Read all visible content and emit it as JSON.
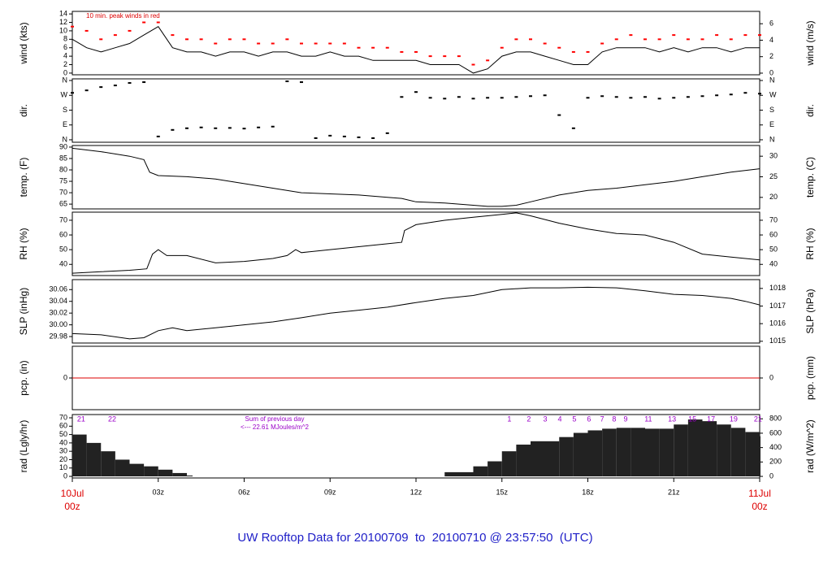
{
  "title": "UW Rooftop Data for 20100709  to  20100710 @ 23:57:50  (UTC)",
  "chart_data": [
    {
      "type": "line",
      "y_label": "wind (kts)",
      "y2_label": "wind (m/s)",
      "note": "10 min. peak winds in red",
      "xlim": [
        0,
        24
      ],
      "ylim": [
        -0.4,
        14.6
      ],
      "yticks": [
        0,
        2,
        4,
        6,
        8,
        10,
        12,
        14
      ],
      "y2lim": [
        -0.2,
        7.5
      ],
      "y2ticks": [
        0,
        2,
        4,
        6
      ],
      "x": [
        0,
        0.5,
        1,
        1.5,
        2,
        2.5,
        3,
        3.5,
        4,
        4.5,
        5,
        5.5,
        6,
        6.5,
        7,
        7.5,
        8,
        8.5,
        9,
        9.5,
        10,
        10.5,
        11,
        11.5,
        12,
        12.5,
        13,
        13.5,
        14,
        14.5,
        15,
        15.5,
        16,
        16.5,
        17,
        17.5,
        18,
        18.5,
        19,
        19.5,
        20,
        20.5,
        21,
        21.5,
        22,
        22.5,
        23,
        23.5,
        24
      ],
      "series": [
        {
          "color": "#000000",
          "style": "line",
          "values": [
            8,
            6,
            5,
            6,
            7,
            9,
            11,
            6,
            5,
            5,
            4,
            5,
            5,
            4,
            5,
            5,
            4,
            4,
            5,
            4,
            4,
            3,
            3,
            3,
            3,
            2,
            2,
            2,
            0,
            1,
            4,
            5,
            5,
            4,
            3,
            2,
            2,
            5,
            6,
            6,
            6,
            5,
            6,
            5,
            6,
            6,
            5,
            6,
            6
          ]
        },
        {
          "color": "#ff0000",
          "style": "points",
          "values": [
            11,
            10,
            8,
            9,
            10,
            12,
            12,
            9,
            8,
            8,
            7,
            8,
            8,
            7,
            7,
            8,
            7,
            7,
            7,
            7,
            6,
            6,
            6,
            5,
            5,
            4,
            4,
            4,
            2,
            3,
            6,
            8,
            8,
            7,
            6,
            5,
            5,
            7,
            8,
            9,
            8,
            8,
            9,
            8,
            8,
            9,
            8,
            9,
            9
          ]
        }
      ]
    },
    {
      "type": "scatter",
      "y_label": "dir.",
      "y2_label": "dir.",
      "xlim": [
        0,
        24
      ],
      "ylim": [
        -15,
        370
      ],
      "yticks": [
        {
          "value": 0,
          "label": "N"
        },
        {
          "value": 90,
          "label": "E"
        },
        {
          "value": 180,
          "label": "S"
        },
        {
          "value": 270,
          "label": "W"
        },
        {
          "value": 360,
          "label": "N"
        }
      ],
      "y2lim": [
        -15,
        370
      ],
      "y2ticks": [
        {
          "value": 0,
          "label": "N"
        },
        {
          "value": 90,
          "label": "E"
        },
        {
          "value": 180,
          "label": "S"
        },
        {
          "value": 270,
          "label": "W"
        },
        {
          "value": 360,
          "label": "N"
        }
      ],
      "x": [
        0,
        0.5,
        1,
        1.5,
        2,
        2.5,
        3,
        3.5,
        4,
        4.5,
        5,
        5.5,
        6,
        6.5,
        7,
        7.5,
        8,
        8.5,
        9,
        9.5,
        10,
        10.5,
        11,
        11.5,
        12,
        12.5,
        13,
        13.5,
        14,
        14.5,
        15,
        15.5,
        16,
        16.5,
        17,
        17.5,
        18,
        18.5,
        19,
        19.5,
        20,
        20.5,
        21,
        21.5,
        22,
        22.5,
        23,
        23.5,
        24
      ],
      "series": [
        {
          "color": "#000000",
          "style": "points",
          "values": [
            285,
            300,
            320,
            330,
            345,
            350,
            20,
            60,
            70,
            75,
            70,
            72,
            68,
            75,
            80,
            355,
            350,
            10,
            25,
            20,
            15,
            10,
            40,
            260,
            290,
            255,
            250,
            260,
            250,
            255,
            255,
            260,
            265,
            270,
            150,
            70,
            255,
            265,
            260,
            255,
            260,
            250,
            255,
            260,
            265,
            270,
            275,
            285,
            280
          ]
        }
      ]
    },
    {
      "type": "line",
      "y_label": "temp. (F)",
      "y2_label": "temp. (C)",
      "xlim": [
        0,
        24
      ],
      "ylim": [
        62.9,
        90.7
      ],
      "yticks": [
        65,
        70,
        75,
        80,
        85,
        90
      ],
      "y2lim": [
        17.2,
        32.6
      ],
      "y2ticks": [
        20,
        25,
        30
      ],
      "x": [
        0,
        1,
        2,
        2.5,
        2.7,
        3,
        4,
        5,
        6,
        7,
        8,
        9,
        10,
        11,
        11.5,
        12,
        13,
        14,
        14.5,
        15,
        15.5,
        16,
        17,
        18,
        19,
        20,
        21,
        22,
        23,
        24
      ],
      "series": [
        {
          "color": "#000000",
          "style": "line",
          "values": [
            89.5,
            88,
            86,
            84.5,
            79,
            77.5,
            77,
            76,
            74,
            72,
            70,
            69.5,
            69,
            68,
            67.5,
            66,
            65.5,
            64.5,
            64,
            64,
            64.5,
            66,
            69,
            71,
            72,
            73.5,
            75,
            77,
            79,
            80.5
          ]
        }
      ]
    },
    {
      "type": "line",
      "y_label": "RH (%)",
      "y2_label": "RH (%)",
      "xlim": [
        0,
        24
      ],
      "ylim": [
        32.4,
        75.5
      ],
      "yticks": [
        40,
        50,
        60,
        70
      ],
      "y2lim": [
        32.4,
        75.5
      ],
      "y2ticks": [
        40,
        50,
        60,
        70
      ],
      "x": [
        0,
        1,
        2,
        2.6,
        2.8,
        3,
        3.3,
        4,
        5,
        6,
        7,
        7.5,
        7.8,
        8,
        9,
        10,
        11,
        11.5,
        11.6,
        12,
        13,
        14,
        15,
        15.5,
        16,
        17,
        18,
        19,
        20,
        21,
        22,
        23,
        24
      ],
      "series": [
        {
          "color": "#000000",
          "style": "line",
          "values": [
            34,
            35,
            36,
            37,
            47,
            50,
            46,
            46,
            41,
            42,
            44,
            46,
            50,
            48,
            50,
            52,
            54,
            55,
            63,
            67,
            70,
            72,
            74,
            75,
            73,
            68,
            64,
            61,
            60,
            55,
            47,
            45,
            43
          ]
        }
      ]
    },
    {
      "type": "line",
      "y_label": "SLP (inHg)",
      "y2_label": "SLP (hPa)",
      "xlim": [
        0,
        24
      ],
      "ylim": [
        29.969,
        30.077
      ],
      "yticks": [
        29.98,
        {
          "value": 30,
          "label": "30.00"
        },
        30.02,
        30.04,
        30.06
      ],
      "y2lim": [
        1014.9,
        1018.5
      ],
      "y2ticks": [
        1015,
        1016,
        1017,
        1018
      ],
      "x": [
        0,
        1,
        2,
        2.5,
        3,
        3.5,
        4,
        5,
        6,
        7,
        8,
        9,
        10,
        11,
        12,
        13,
        14,
        15,
        16,
        17,
        18,
        19,
        20,
        21,
        22,
        23,
        23.5,
        24
      ],
      "series": [
        {
          "color": "#000000",
          "style": "line",
          "values": [
            29.985,
            29.983,
            29.976,
            29.978,
            29.99,
            29.995,
            29.99,
            29.995,
            30,
            30.005,
            30.012,
            30.02,
            30.025,
            30.03,
            30.038,
            30.045,
            30.05,
            30.06,
            30.063,
            30.063,
            30.064,
            30.063,
            30.058,
            30.052,
            30.05,
            30.045,
            30.04,
            30.034
          ]
        }
      ]
    },
    {
      "type": "line",
      "y_label": "pcp. (in)",
      "y2_label": "pcp. (mm)",
      "xlim": [
        0,
        24
      ],
      "ylim": [
        -1,
        1
      ],
      "yticks": [
        0
      ],
      "y2lim": [
        -25.4,
        25.4
      ],
      "y2ticks": [
        0
      ],
      "x": [
        0,
        24
      ],
      "series": [
        {
          "color": "#dd0000",
          "style": "line",
          "values": [
            0,
            0
          ]
        }
      ]
    },
    {
      "type": "area",
      "y_label": "rad (Lgly/hr)",
      "y2_label": "rad (W/m^2)",
      "notes": [
        "Sum of previous day",
        "<--- 22.61 MJoules/m^2"
      ],
      "note_color": "#9a00c8",
      "hour_labels": {
        "x": [
          0.31,
          1.39,
          15.26,
          15.94,
          16.51,
          17.02,
          17.53,
          18.04,
          18.5,
          18.92,
          19.32,
          20.11,
          20.94,
          21.65,
          22.3,
          23.09,
          23.94
        ],
        "labels": [
          "21",
          "22",
          "1",
          "2",
          "3",
          "4",
          "5",
          "6",
          "7",
          "8",
          "9",
          "11",
          "13",
          "15",
          "17",
          "19",
          "21"
        ]
      },
      "xlim": [
        0,
        24
      ],
      "ylim": [
        -1.9,
        73.9
      ],
      "yticks": [
        0,
        10,
        20,
        30,
        40,
        50,
        60,
        70
      ],
      "y2lim": [
        -22,
        859
      ],
      "y2ticks": [
        0,
        200,
        400,
        600,
        800
      ],
      "xticks": [
        {
          "value": 0,
          "label": "10Jul 00z"
        },
        {
          "value": 3,
          "label": "03z"
        },
        {
          "value": 6,
          "label": "06z"
        },
        {
          "value": 9,
          "label": "09z"
        },
        {
          "value": 12,
          "label": "12z"
        },
        {
          "value": 15,
          "label": "15z"
        },
        {
          "value": 18,
          "label": "18z"
        },
        {
          "value": 21,
          "label": "21z"
        },
        {
          "value": 24,
          "label": "11Jul 00z"
        }
      ],
      "date_color": "#dd0000",
      "x": [
        0,
        0.5,
        1,
        1.5,
        2,
        2.5,
        3,
        3.5,
        4,
        4.2,
        12,
        13,
        14,
        14.5,
        15,
        15.5,
        16,
        17,
        17.5,
        18,
        18.5,
        19,
        19.5,
        20,
        20.5,
        21,
        21.5,
        22,
        22.5,
        23,
        23.5,
        24
      ],
      "series": [
        {
          "color": "#222222",
          "style": "area",
          "values": [
            50,
            40,
            30,
            20,
            15,
            12,
            8,
            4,
            1,
            0,
            0,
            5,
            12,
            18,
            30,
            38,
            42,
            47,
            52,
            55,
            57,
            58,
            58,
            57,
            57,
            62,
            68,
            66,
            62,
            58,
            53,
            48
          ]
        }
      ]
    }
  ]
}
